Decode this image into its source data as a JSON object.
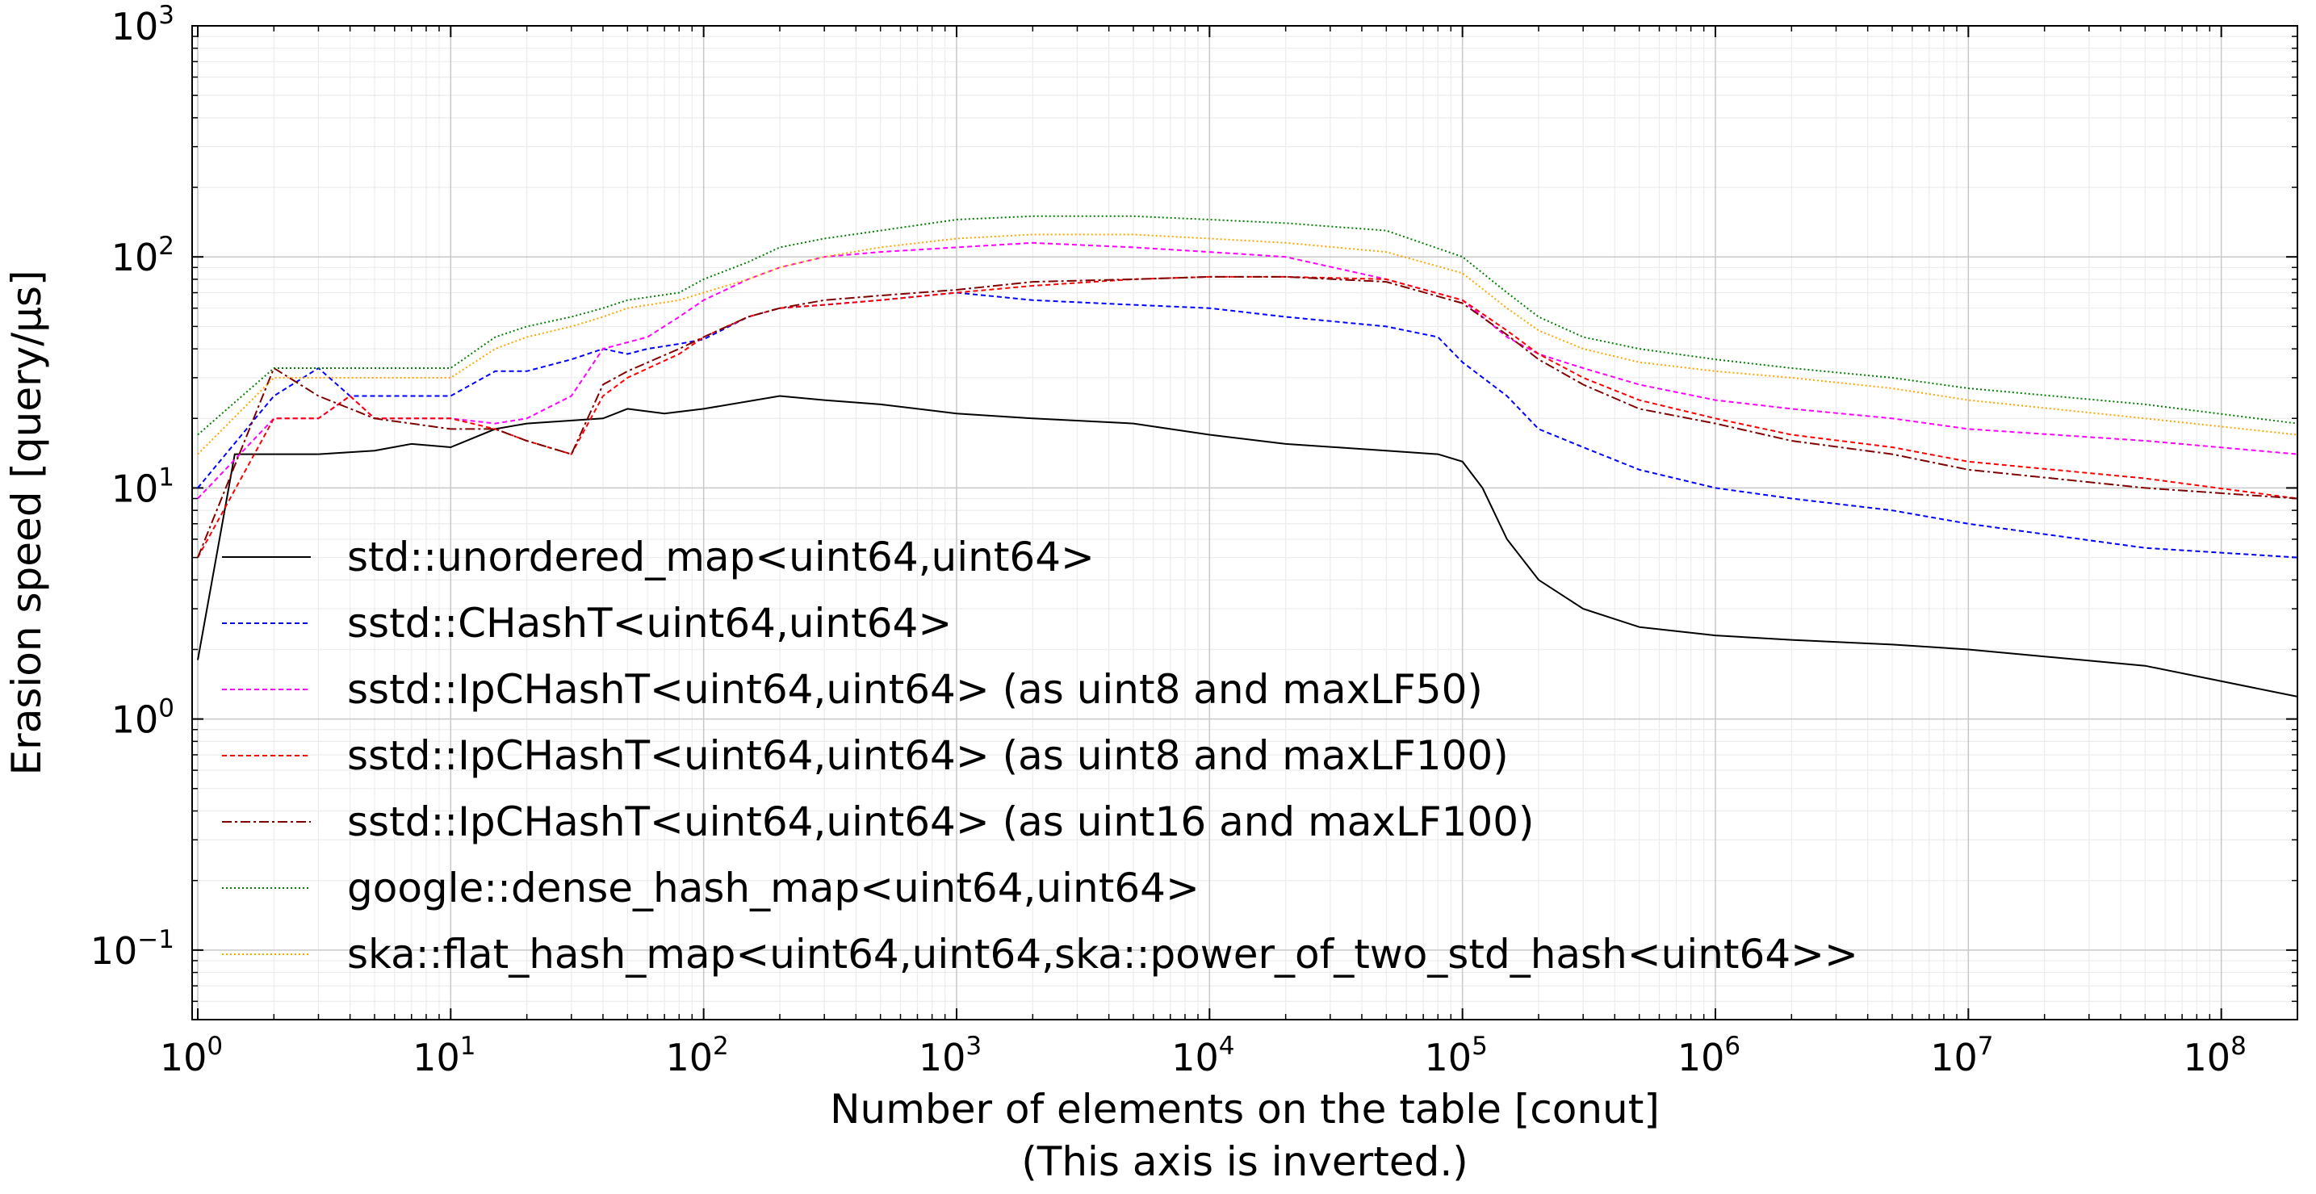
{
  "chart_data": {
    "type": "line",
    "xlabel": "Number of elements on the table [conut]",
    "xlabel_note": "(This axis is inverted.)",
    "ylabel": "Erasion speed [query/µs]",
    "x_scale": "log",
    "y_scale": "log",
    "xlim": [
      0.95,
      200000000
    ],
    "ylim": [
      0.05,
      1000
    ],
    "grid": true,
    "legend_position": "lower-left",
    "x_ticks": [
      {
        "base": "10",
        "exp": "0",
        "value": 1
      },
      {
        "base": "10",
        "exp": "1",
        "value": 10
      },
      {
        "base": "10",
        "exp": "2",
        "value": 100
      },
      {
        "base": "10",
        "exp": "3",
        "value": 1000
      },
      {
        "base": "10",
        "exp": "4",
        "value": 10000
      },
      {
        "base": "10",
        "exp": "5",
        "value": 100000
      },
      {
        "base": "10",
        "exp": "6",
        "value": 1000000
      },
      {
        "base": "10",
        "exp": "7",
        "value": 10000000
      },
      {
        "base": "10",
        "exp": "8",
        "value": 100000000
      }
    ],
    "y_ticks": [
      {
        "base": "10",
        "exp": "−1",
        "value": 0.1
      },
      {
        "base": "10",
        "exp": "0",
        "value": 1
      },
      {
        "base": "10",
        "exp": "1",
        "value": 10
      },
      {
        "base": "10",
        "exp": "2",
        "value": 100
      },
      {
        "base": "10",
        "exp": "3",
        "value": 1000
      }
    ],
    "series": [
      {
        "name": "std::unordered_map<uint64,uint64>",
        "color": "#000000",
        "dash": "solid",
        "x": [
          1,
          1.4,
          2,
          3,
          5,
          7,
          10,
          15,
          20,
          40,
          50,
          70,
          100,
          200,
          300,
          500,
          1000,
          2000,
          5000,
          10000,
          20000,
          50000,
          80000,
          100000,
          120000,
          150000,
          200000,
          300000,
          500000,
          1000000,
          2000000,
          5000000,
          10000000,
          50000000,
          200000000
        ],
        "y": [
          1.8,
          14,
          14,
          14,
          14.5,
          15.5,
          15,
          18,
          19,
          20,
          22,
          21,
          22,
          25,
          24,
          23,
          21,
          20,
          19,
          17,
          15.5,
          14.5,
          14,
          13,
          10,
          6,
          4,
          3,
          2.5,
          2.3,
          2.2,
          2.1,
          2.0,
          1.7,
          1.25
        ]
      },
      {
        "name": "sstd::CHashT<uint64,uint64>",
        "color": "#0000ff",
        "dash": "6,4",
        "x": [
          1,
          2,
          3,
          4,
          5,
          10,
          15,
          20,
          30,
          40,
          50,
          60,
          80,
          100,
          150,
          200,
          300,
          500,
          1000,
          2000,
          5000,
          10000,
          20000,
          50000,
          80000,
          100000,
          150000,
          200000,
          300000,
          500000,
          1000000,
          2000000,
          5000000,
          10000000,
          50000000,
          200000000
        ],
        "y": [
          10,
          25,
          33,
          25,
          25,
          25,
          32,
          32,
          36,
          40,
          38,
          40,
          42,
          44,
          55,
          60,
          62,
          65,
          70,
          65,
          62,
          60,
          55,
          50,
          45,
          35,
          25,
          18,
          15,
          12,
          10,
          9,
          8,
          7,
          5.5,
          5
        ]
      },
      {
        "name": "sstd::IpCHashT<uint64,uint64> (as uint8 and maxLF50)",
        "color": "#ff00ff",
        "dash": "6,4",
        "x": [
          1,
          2,
          3,
          4,
          5,
          10,
          15,
          20,
          30,
          40,
          60,
          80,
          100,
          150,
          200,
          300,
          500,
          1000,
          2000,
          5000,
          10000,
          20000,
          50000,
          100000,
          150000,
          200000,
          300000,
          500000,
          1000000,
          2000000,
          5000000,
          10000000,
          50000000,
          200000000
        ],
        "y": [
          9,
          20,
          20,
          25,
          20,
          20,
          19,
          20,
          25,
          40,
          45,
          55,
          65,
          80,
          90,
          100,
          105,
          110,
          115,
          110,
          105,
          100,
          80,
          65,
          45,
          38,
          33,
          28,
          24,
          22,
          20,
          18,
          16,
          14
        ]
      },
      {
        "name": "sstd::IpCHashT<uint64,uint64> (as uint8 and maxLF100)",
        "color": "#ff0000",
        "dash": "6,4",
        "x": [
          1,
          2,
          3,
          4,
          5,
          10,
          15,
          20,
          30,
          40,
          50,
          80,
          100,
          150,
          200,
          300,
          500,
          1000,
          2000,
          5000,
          10000,
          20000,
          50000,
          100000,
          150000,
          200000,
          300000,
          500000,
          1000000,
          2000000,
          5000000,
          10000000,
          50000000,
          200000000
        ],
        "y": [
          5,
          20,
          20,
          25,
          20,
          20,
          18,
          16,
          14,
          25,
          30,
          38,
          45,
          55,
          60,
          62,
          65,
          70,
          75,
          80,
          82,
          82,
          80,
          65,
          48,
          38,
          30,
          24,
          20,
          17,
          15,
          13,
          11,
          9
        ]
      },
      {
        "name": "sstd::IpCHashT<uint64,uint64> (as uint16 and maxLF100)",
        "color": "#800000",
        "dash": "12,4,3,4",
        "x": [
          1,
          2,
          3,
          5,
          10,
          15,
          20,
          30,
          40,
          50,
          80,
          100,
          150,
          200,
          300,
          500,
          1000,
          2000,
          5000,
          10000,
          20000,
          50000,
          100000,
          150000,
          200000,
          300000,
          500000,
          1000000,
          2000000,
          5000000,
          10000000,
          50000000,
          200000000
        ],
        "y": [
          5,
          33,
          25,
          20,
          18,
          18,
          16,
          14,
          28,
          32,
          40,
          45,
          55,
          60,
          65,
          68,
          72,
          78,
          80,
          82,
          82,
          78,
          63,
          46,
          36,
          28,
          22,
          19,
          16,
          14,
          12,
          10,
          9
        ]
      },
      {
        "name": "google::dense_hash_map<uint64,uint64>",
        "color": "#008000",
        "dash": "2,3",
        "x": [
          1,
          2,
          3,
          5,
          10,
          15,
          20,
          30,
          40,
          50,
          80,
          100,
          150,
          200,
          300,
          500,
          1000,
          2000,
          5000,
          10000,
          20000,
          50000,
          100000,
          150000,
          200000,
          300000,
          500000,
          1000000,
          2000000,
          5000000,
          10000000,
          50000000,
          200000000
        ],
        "y": [
          17,
          33,
          33,
          33,
          33,
          45,
          50,
          55,
          60,
          65,
          70,
          80,
          95,
          110,
          120,
          130,
          145,
          150,
          150,
          145,
          140,
          130,
          100,
          70,
          55,
          45,
          40,
          36,
          33,
          30,
          27,
          23,
          19
        ]
      },
      {
        "name": "ska::flat_hash_map<uint64,uint64,ska::power_of_two_std_hash<uint64>>",
        "color": "#ffa500",
        "dash": "2,3",
        "x": [
          1,
          2,
          3,
          5,
          10,
          15,
          20,
          30,
          40,
          50,
          80,
          100,
          150,
          200,
          300,
          500,
          1000,
          2000,
          5000,
          10000,
          20000,
          50000,
          100000,
          150000,
          200000,
          300000,
          500000,
          1000000,
          2000000,
          5000000,
          10000000,
          50000000,
          200000000
        ],
        "y": [
          14,
          30,
          30,
          30,
          30,
          40,
          45,
          50,
          55,
          60,
          65,
          70,
          80,
          90,
          100,
          110,
          120,
          125,
          125,
          120,
          115,
          105,
          85,
          60,
          48,
          40,
          35,
          32,
          30,
          27,
          24,
          20,
          17
        ]
      }
    ]
  }
}
